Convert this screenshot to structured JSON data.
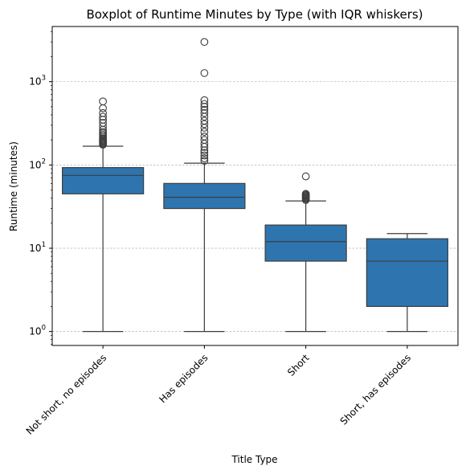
{
  "chart_data": {
    "type": "box",
    "title": "Boxplot of Runtime Minutes by Type (with IQR whiskers)",
    "xlabel": "Title Type",
    "ylabel": "Runtime (minutes)",
    "y_scale": "log",
    "ylim": [
      0.68,
      4600
    ],
    "y_major_ticks": [
      {
        "value": 1,
        "base": "10",
        "exp": "0"
      },
      {
        "value": 10,
        "base": "10",
        "exp": "1"
      },
      {
        "value": 100,
        "base": "10",
        "exp": "2"
      },
      {
        "value": 1000,
        "base": "10",
        "exp": "3"
      }
    ],
    "grid": {
      "axis": "y",
      "style": "dashed"
    },
    "box_color": "#2e75b0",
    "line_color": "#3d3d3d",
    "categories": [
      "Not short, no episodes",
      "Has episodes",
      "Short",
      "Short, has episodes"
    ],
    "boxes": [
      {
        "whisker_low": 1,
        "q1": 45,
        "median": 75,
        "q3": 93,
        "whisker_high": 168,
        "outliers": [
          175,
          180,
          185,
          190,
          195,
          200,
          205,
          210,
          220,
          230,
          240,
          250,
          265,
          290,
          320,
          350,
          380,
          420,
          480,
          580
        ]
      },
      {
        "whisker_low": 1,
        "q1": 30,
        "median": 41,
        "q3": 60,
        "whisker_high": 105,
        "outliers": [
          112,
          120,
          130,
          140,
          150,
          165,
          180,
          200,
          220,
          250,
          280,
          310,
          340,
          380,
          420,
          460,
          500,
          540,
          600,
          1270,
          3000
        ]
      },
      {
        "whisker_low": 1,
        "q1": 7,
        "median": 12,
        "q3": 19,
        "whisker_high": 37,
        "outliers": [
          38,
          39,
          40,
          41,
          42,
          43,
          44,
          45,
          73
        ]
      },
      {
        "whisker_low": 1,
        "q1": 2,
        "median": 7,
        "q3": 13,
        "whisker_high": 15,
        "outliers": []
      }
    ]
  }
}
